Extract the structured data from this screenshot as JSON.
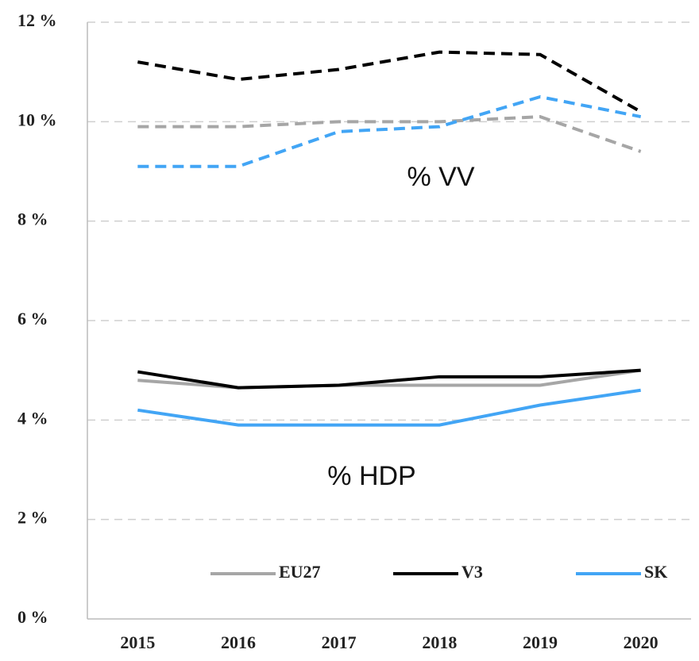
{
  "chart_data": {
    "type": "line",
    "categories": [
      "2015",
      "2016",
      "2017",
      "2018",
      "2019",
      "2020"
    ],
    "series": [
      {
        "color": "#a6a6a6",
        "dashed": true,
        "values": [
          9.9,
          9.9,
          10.0,
          10.0,
          10.1,
          9.4
        ]
      },
      {
        "color": "#000000",
        "dashed": true,
        "values": [
          11.2,
          10.85,
          11.05,
          11.4,
          11.35,
          10.2
        ]
      },
      {
        "color": "#42a5f5",
        "dashed": true,
        "values": [
          9.1,
          9.1,
          9.8,
          9.9,
          10.5,
          10.1
        ]
      },
      {
        "name": "EU27",
        "color": "#a6a6a6",
        "dashed": false,
        "values": [
          4.8,
          4.65,
          4.7,
          4.7,
          4.7,
          5.0
        ]
      },
      {
        "name": "V3",
        "color": "#000000",
        "dashed": false,
        "values": [
          4.97,
          4.65,
          4.7,
          4.87,
          4.87,
          5.0
        ]
      },
      {
        "name": "SK",
        "color": "#42a5f5",
        "dashed": false,
        "values": [
          4.2,
          3.9,
          3.9,
          3.9,
          4.3,
          4.6
        ]
      }
    ],
    "annotations": [
      "% VV",
      "% HDP"
    ],
    "ylim": [
      0,
      12
    ],
    "yticks": [
      {
        "value": 0,
        "label": "0 %"
      },
      {
        "value": 2,
        "label": "2 %"
      },
      {
        "value": 4,
        "label": "4 %"
      },
      {
        "value": 6,
        "label": "6 %"
      },
      {
        "value": 8,
        "label": "8 %"
      },
      {
        "value": 10,
        "label": "10 %"
      },
      {
        "value": 12,
        "label": "12 %"
      }
    ],
    "grid": true,
    "legend": "bottom"
  }
}
